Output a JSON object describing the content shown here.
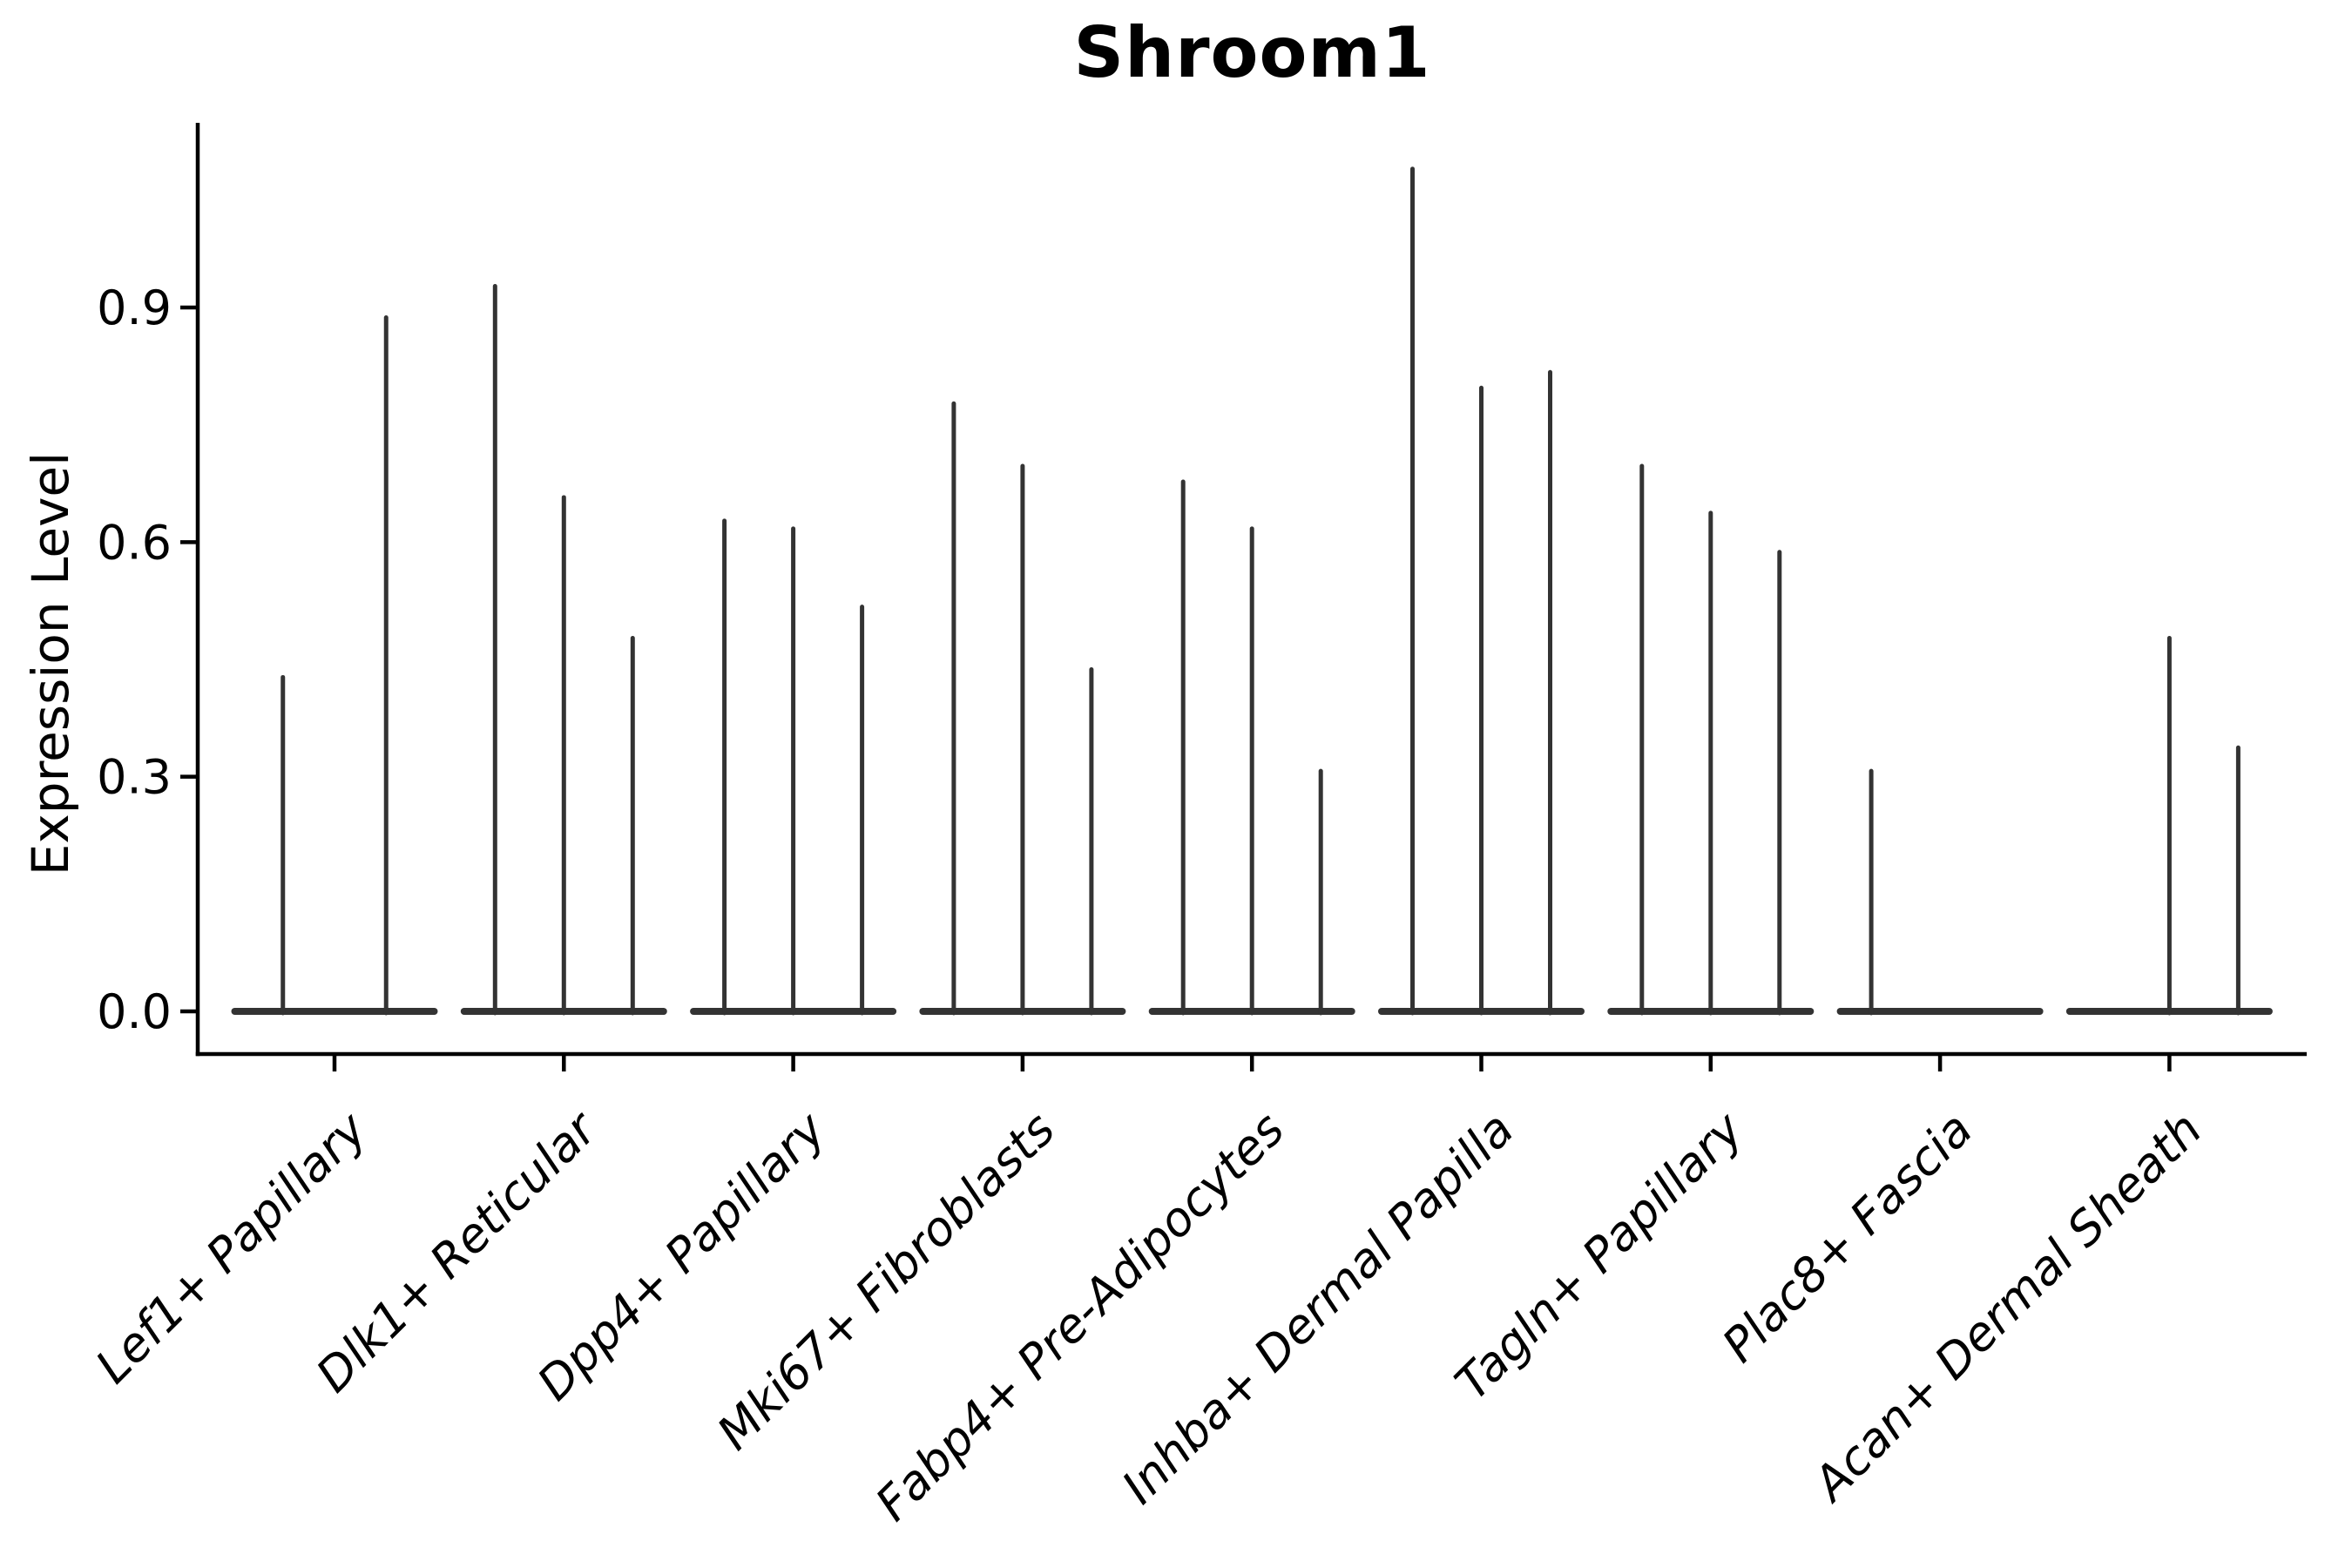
{
  "chart_data": {
    "type": "violin",
    "title": "Shroom1",
    "ylabel": "Expression Level",
    "xlabel": "",
    "ylim": [
      -0.055,
      1.135
    ],
    "yticks": [
      {
        "value": 0.0,
        "label": "0.0"
      },
      {
        "value": 0.3,
        "label": "0.3"
      },
      {
        "value": 0.6,
        "label": "0.6"
      },
      {
        "value": 0.9,
        "label": "0.9"
      }
    ],
    "grid": false,
    "legend_position": "none",
    "violin_line_color": "#333333",
    "axis_color": "#000000",
    "style_note": "needle violins: nearly all cells at 0 expression (flat wide base on the zero line), thin density spike rising to the max expression value",
    "categories": [
      "Lef1+ Papillary",
      "Dlk1+ Reticular",
      "Dpp4+ Papillary",
      "Mki67+ Fibroblasts",
      "Fabp4+ Pre-Adipocytes",
      "Inhba+ Dermal Papilla",
      "Tagln+ Papillary",
      "Plac8+ Fascia",
      "Acan+ Dermal Sheath"
    ],
    "series": [
      {
        "category": "Lef1+ Papillary",
        "violin_peaks": [
          0.43,
          0.89
        ]
      },
      {
        "category": "Dlk1+ Reticular",
        "violin_peaks": [
          0.93,
          0.66,
          0.48
        ]
      },
      {
        "category": "Dpp4+ Papillary",
        "violin_peaks": [
          0.63,
          0.62,
          0.52
        ]
      },
      {
        "category": "Mki67+ Fibroblasts",
        "violin_peaks": [
          0.78,
          0.7,
          0.44
        ]
      },
      {
        "category": "Fabp4+ Pre-Adipocytes",
        "violin_peaks": [
          0.68,
          0.62,
          0.31
        ]
      },
      {
        "category": "Inhba+ Dermal Papilla",
        "violin_peaks": [
          1.08,
          0.8,
          0.82
        ]
      },
      {
        "category": "Tagln+ Papillary",
        "violin_peaks": [
          0.7,
          0.64,
          0.59
        ]
      },
      {
        "category": "Plac8+ Fascia",
        "violin_peaks": [
          0.31,
          0,
          0
        ]
      },
      {
        "category": "Acan+ Dermal Sheath",
        "violin_peaks": [
          0,
          0.48,
          0.34
        ]
      }
    ]
  }
}
